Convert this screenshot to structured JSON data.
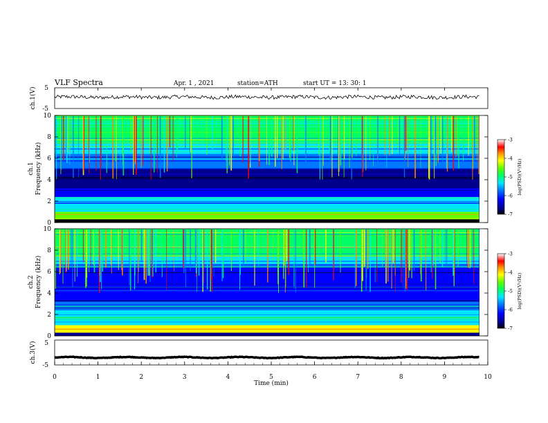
{
  "header": {
    "title": "VLF  Spectra",
    "date": "Apr. 1  , 2021",
    "station": "station=ATH",
    "start": "start  UT  =   13: 30: 1"
  },
  "colors": {
    "spectrogram_scale": [
      "#000000",
      "#00008c",
      "#0000ff",
      "#0078ff",
      "#00e6ff",
      "#00ff64",
      "#64ff00",
      "#ffff00",
      "#ff8c00",
      "#ff0000",
      "#ffffff"
    ],
    "trace": "#000000"
  },
  "chart_data": [
    {
      "type": "line",
      "name": "ch1-waveform",
      "ylabel": "ch.1(V)",
      "ylim": [
        -5,
        5
      ],
      "yticks": [
        "5",
        "-5"
      ],
      "xlim": [
        0,
        10
      ],
      "x_extent_min": 9.8,
      "values_approx": {
        "mean": 0.5,
        "range": [
          -1.5,
          1.5
        ]
      }
    },
    {
      "type": "heatmap",
      "name": "ch1-spectrogram",
      "ylabel": "ch.1\nFrequency  (kHz)",
      "ylim": [
        0,
        10
      ],
      "yticks": [
        "0",
        "2",
        "4",
        "6",
        "8",
        "10"
      ],
      "xlim": [
        0,
        10
      ],
      "x_extent_min": 9.8,
      "colorbar": {
        "label": "log(PSD)(V²/Hz)",
        "range": [
          -7,
          -3
        ],
        "ticks": [
          "-3",
          "-4",
          "-5",
          "-6",
          "-7"
        ]
      },
      "bands": [
        {
          "f": [
            0,
            0.3
          ],
          "logPSD": -7.0
        },
        {
          "f": [
            0.3,
            1.0
          ],
          "logPSD": -4.6
        },
        {
          "f": [
            1.0,
            2.4
          ],
          "logPSD": -5.6
        },
        {
          "f": [
            2.4,
            3.2
          ],
          "logPSD": -6.2
        },
        {
          "f": [
            3.2,
            5.0
          ],
          "logPSD": -6.7
        },
        {
          "f": [
            5.0,
            6.4
          ],
          "logPSD": -6.0
        },
        {
          "f": [
            6.4,
            7.4
          ],
          "logPSD": -5.4
        },
        {
          "f": [
            7.4,
            10
          ],
          "logPSD": -5.0
        }
      ]
    },
    {
      "type": "heatmap",
      "name": "ch2-spectrogram",
      "ylabel": "ch.2\nFrequency  (kHz)",
      "ylim": [
        0,
        10
      ],
      "yticks": [
        "0",
        "2",
        "4",
        "6",
        "8",
        "10"
      ],
      "xlim": [
        0,
        10
      ],
      "x_extent_min": 9.8,
      "colorbar": {
        "label": "log(PSD)(V²/Hz)",
        "range": [
          -7,
          -3
        ],
        "ticks": [
          "-3",
          "-4",
          "-5",
          "-6",
          "-7"
        ]
      },
      "bands": [
        {
          "f": [
            0,
            0.3
          ],
          "logPSD": -6.6
        },
        {
          "f": [
            0.3,
            1.0
          ],
          "logPSD": -4.2
        },
        {
          "f": [
            1.0,
            2.4
          ],
          "logPSD": -5.3
        },
        {
          "f": [
            2.4,
            3.2
          ],
          "logPSD": -5.8
        },
        {
          "f": [
            3.2,
            4.6
          ],
          "logPSD": -6.2
        },
        {
          "f": [
            4.6,
            6.4
          ],
          "logPSD": -6.1
        },
        {
          "f": [
            6.4,
            7.4
          ],
          "logPSD": -5.6
        },
        {
          "f": [
            7.4,
            10
          ],
          "logPSD": -5.0
        }
      ]
    },
    {
      "type": "line",
      "name": "ch3-waveform",
      "ylabel": "ch.3(V)",
      "ylim": [
        -5,
        5
      ],
      "yticks": [
        "5",
        "-5"
      ],
      "xlim": [
        0,
        10
      ],
      "x_extent_min": 9.8,
      "values_approx": {
        "mean": -2.0,
        "range": [
          -2.2,
          -1.8
        ]
      }
    }
  ],
  "xaxis": {
    "label": "Time  (min)",
    "ticks": [
      "0",
      "1",
      "2",
      "3",
      "4",
      "5",
      "6",
      "7",
      "8",
      "9",
      "10"
    ]
  }
}
